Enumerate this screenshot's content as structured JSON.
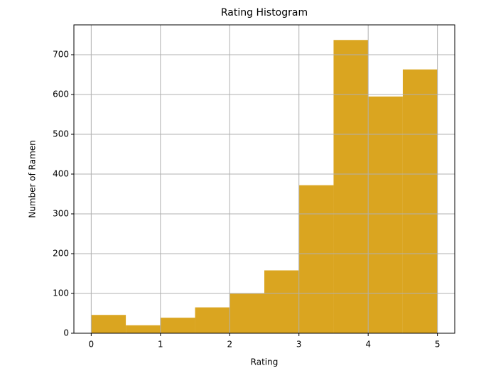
{
  "chart_data": {
    "type": "histogram",
    "title": "Rating Histogram",
    "x_label": "Rating",
    "y_label": "Number of Ramen",
    "bins": [
      0,
      0.5,
      1,
      1.5,
      2,
      2.5,
      3,
      3.5,
      4,
      4.5,
      5
    ],
    "values": [
      46,
      20,
      39,
      65,
      101,
      158,
      372,
      737,
      595,
      663
    ],
    "color": "#daa520",
    "xlim": [
      -0.25,
      5.25
    ],
    "xticks": [
      0,
      1,
      2,
      3,
      4,
      5
    ],
    "ylim": [
      0,
      775
    ],
    "yticks": [
      0,
      100,
      200,
      300,
      400,
      500,
      600,
      700
    ],
    "grid": true
  }
}
